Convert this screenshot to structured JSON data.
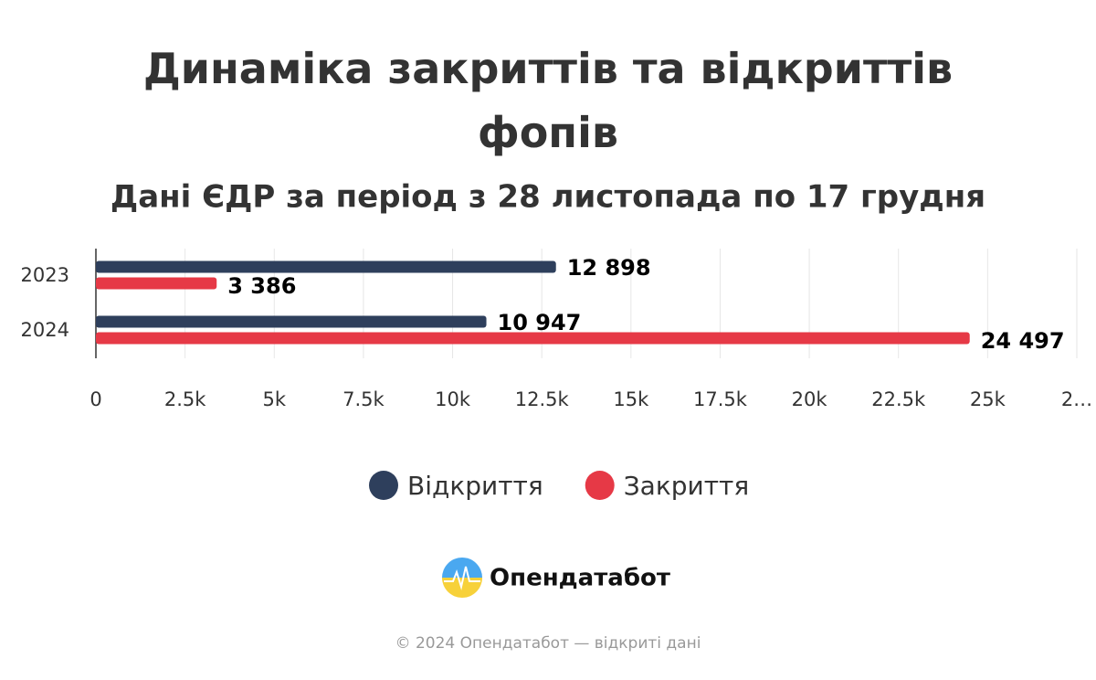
{
  "chart_data": {
    "type": "hbar",
    "title": "Динаміка закриттів та відкриттів фопів",
    "subtitle": "Дані ЄДР за період з 28 листопада по 17 грудня",
    "categories": [
      "2023",
      "2024"
    ],
    "series": [
      {
        "name": "Відкриття",
        "color": "#2e3f5c",
        "values": [
          12898,
          10947
        ],
        "value_labels": [
          "12 898",
          "10 947"
        ]
      },
      {
        "name": "Закриття",
        "color": "#e63946",
        "values": [
          3386,
          24497
        ],
        "value_labels": [
          "3 386",
          "24 497"
        ]
      }
    ],
    "xlim": [
      0,
      27500
    ],
    "xticks": [
      0,
      {
        "value": 2500,
        "label": "2.5k"
      },
      {
        "value": 5000,
        "label": "5k"
      },
      {
        "value": 7500,
        "label": "7.5k"
      },
      {
        "value": 10000,
        "label": "10k"
      },
      {
        "value": 12500,
        "label": "12.5k"
      },
      {
        "value": 15000,
        "label": "15k"
      },
      {
        "value": 17500,
        "label": "17.5k"
      },
      {
        "value": 20000,
        "label": "20k"
      },
      {
        "value": 22500,
        "label": "22.5k"
      },
      {
        "value": 25000,
        "label": "25k"
      },
      {
        "value": 27500,
        "label": "2…"
      }
    ],
    "grid": true,
    "legend": "bottom"
  },
  "brand": "Опендатабот",
  "footer": "© 2024 Опендатабот — відкриті дані"
}
